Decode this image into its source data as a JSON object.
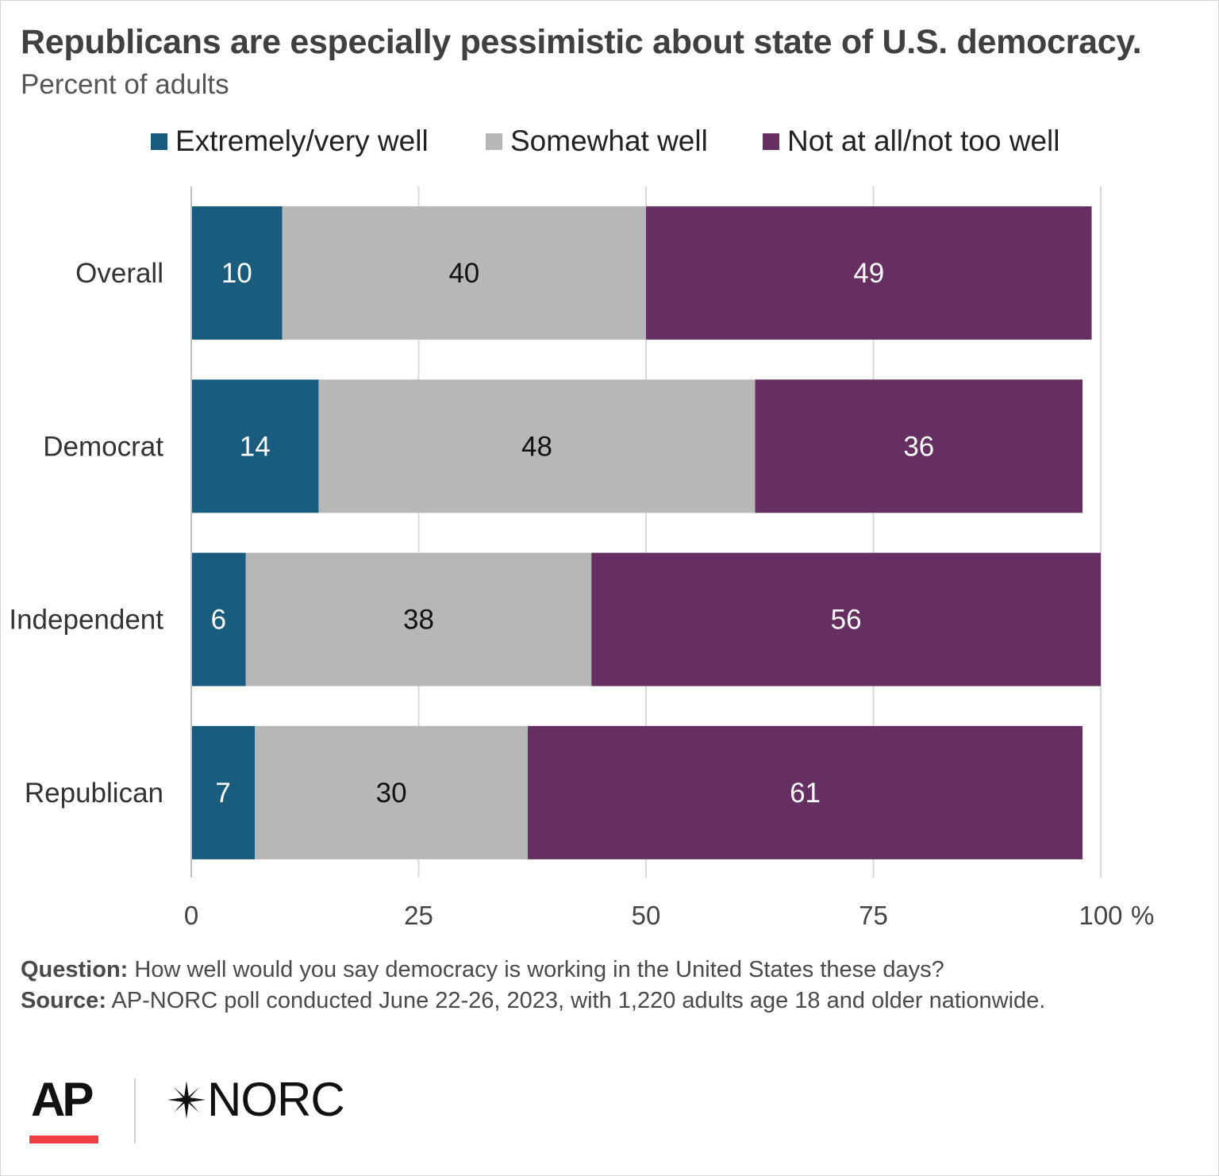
{
  "chart_data": {
    "type": "bar",
    "orientation": "horizontal",
    "stacked": true,
    "title": "Republicans are especially pessimistic about state of U.S. democracy.",
    "subtitle": "Percent of adults",
    "categories": [
      "Overall",
      "Democrat",
      "Independent",
      "Republican"
    ],
    "series": [
      {
        "name": "Extremely/very well",
        "values": [
          10,
          14,
          6,
          7
        ],
        "color": "#1a5c7d",
        "label_color": "#ffffff"
      },
      {
        "name": "Somewhat well",
        "values": [
          40,
          48,
          38,
          30
        ],
        "color": "#b7b7b7",
        "label_color": "#111111"
      },
      {
        "name": "Not at all/not too well",
        "values": [
          49,
          36,
          56,
          61
        ],
        "color": "#662f61",
        "label_color": "#ffffff"
      }
    ],
    "xlim": [
      0,
      100
    ],
    "xticks": [
      "0",
      "25",
      "50",
      "75",
      "100"
    ],
    "xtick_values": [
      0,
      25,
      50,
      75,
      100
    ],
    "x_unit": "%",
    "grid": true,
    "legend_position": "top"
  },
  "notes": {
    "question_label": "Question:",
    "question_text": " How well would you say democracy is working in the United States these days?",
    "source_label": "Source:",
    "source_text": " AP-NORC poll conducted June 22-26, 2023, with 1,220 adults age 18 and older nationwide."
  },
  "logos": {
    "ap": "AP",
    "norc": "NORC"
  }
}
